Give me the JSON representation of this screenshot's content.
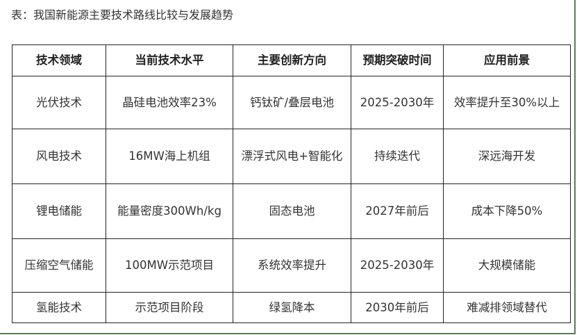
{
  "caption": "表：我国新能源主要技术路线比较与发展趋势",
  "table": {
    "headers": [
      "技术领域",
      "当前技术水平",
      "主要创新方向",
      "预期突破时间",
      "应用前景"
    ],
    "rows": [
      [
        "光伏技术",
        "晶硅电池效率23%",
        "钙钛矿/叠层电池",
        "2025-2030年",
        "效率提升至30%以上"
      ],
      [
        "风电技术",
        "16MW海上机组",
        "漂浮式风电+智能化",
        "持续迭代",
        "深远海开发"
      ],
      [
        "锂电储能",
        "能量密度300Wh/kg",
        "固态电池",
        "2027年前后",
        "成本下降50%"
      ],
      [
        "压缩空气储能",
        "100MW示范项目",
        "系统效率提升",
        "2025-2030年",
        "大规模储能"
      ],
      [
        "氢能技术",
        "示范项目阶段",
        "绿氢降本",
        "2030年前后",
        "难减排领域替代"
      ]
    ]
  }
}
